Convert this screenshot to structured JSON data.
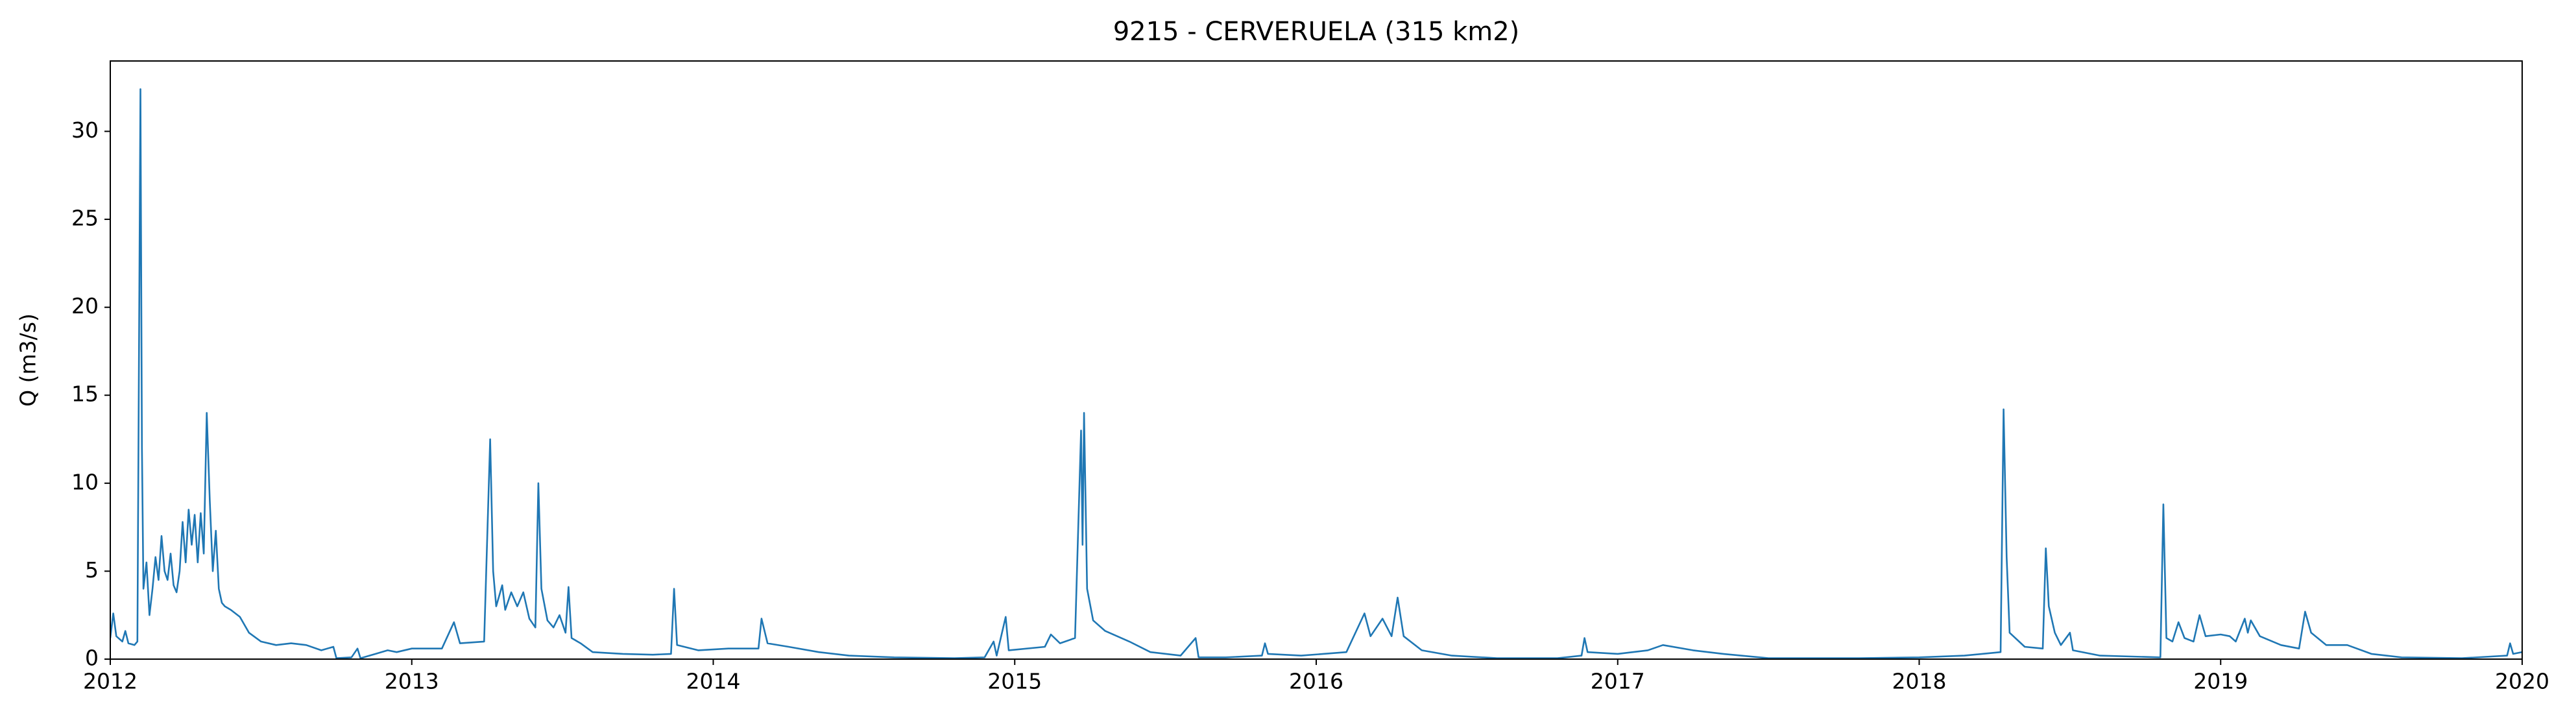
{
  "chart_data": {
    "type": "line",
    "title": "9215 - CERVERUELA (315 km2)",
    "y_label": "Q (m3/s)",
    "xlim": [
      2012,
      2020
    ],
    "xticks": [
      2012,
      2013,
      2014,
      2015,
      2016,
      2017,
      2018,
      2019,
      2020
    ],
    "ylim": [
      0,
      34
    ],
    "yticks": [
      0,
      5,
      10,
      15,
      20,
      25,
      30
    ],
    "grid": false,
    "series": [
      {
        "color": "#1f77b4",
        "x": [
          2012.0,
          2012.01,
          2012.02,
          2012.04,
          2012.05,
          2012.06,
          2012.08,
          2012.09,
          2012.1,
          2012.105,
          2012.11,
          2012.12,
          2012.13,
          2012.14,
          2012.15,
          2012.16,
          2012.17,
          2012.18,
          2012.19,
          2012.2,
          2012.21,
          2012.22,
          2012.23,
          2012.24,
          2012.25,
          2012.26,
          2012.27,
          2012.28,
          2012.29,
          2012.3,
          2012.31,
          2012.32,
          2012.33,
          2012.34,
          2012.35,
          2012.36,
          2012.37,
          2012.38,
          2012.4,
          2012.43,
          2012.46,
          2012.5,
          2012.55,
          2012.6,
          2012.65,
          2012.7,
          2012.74,
          2012.75,
          2012.8,
          2012.82,
          2012.83,
          2012.88,
          2012.92,
          2012.95,
          2013.0,
          2013.1,
          2013.14,
          2013.16,
          2013.24,
          2013.26,
          2013.27,
          2013.28,
          2013.3,
          2013.31,
          2013.33,
          2013.35,
          2013.37,
          2013.39,
          2013.41,
          2013.42,
          2013.43,
          2013.45,
          2013.47,
          2013.49,
          2013.51,
          2013.52,
          2013.53,
          2013.56,
          2013.6,
          2013.7,
          2013.8,
          2013.86,
          2013.87,
          2013.88,
          2013.95,
          2014.05,
          2014.15,
          2014.16,
          2014.18,
          2014.25,
          2014.35,
          2014.45,
          2014.6,
          2014.8,
          2014.9,
          2014.93,
          2014.94,
          2014.97,
          2014.98,
          2015.1,
          2015.12,
          2015.15,
          2015.2,
          2015.22,
          2015.225,
          2015.23,
          2015.24,
          2015.26,
          2015.3,
          2015.38,
          2015.45,
          2015.55,
          2015.6,
          2015.61,
          2015.7,
          2015.82,
          2015.83,
          2015.84,
          2015.95,
          2016.1,
          2016.16,
          2016.18,
          2016.22,
          2016.25,
          2016.27,
          2016.29,
          2016.35,
          2016.45,
          2016.6,
          2016.8,
          2016.88,
          2016.89,
          2016.9,
          2017.0,
          2017.1,
          2017.15,
          2017.25,
          2017.35,
          2017.5,
          2017.8,
          2018.0,
          2018.15,
          2018.27,
          2018.28,
          2018.29,
          2018.3,
          2018.35,
          2018.41,
          2018.42,
          2018.43,
          2018.45,
          2018.47,
          2018.5,
          2018.51,
          2018.6,
          2018.8,
          2018.81,
          2018.82,
          2018.84,
          2018.86,
          2018.88,
          2018.91,
          2018.93,
          2018.95,
          2019.0,
          2019.03,
          2019.05,
          2019.08,
          2019.09,
          2019.1,
          2019.13,
          2019.2,
          2019.26,
          2019.28,
          2019.3,
          2019.35,
          2019.42,
          2019.5,
          2019.6,
          2019.8,
          2019.95,
          2019.96,
          2019.97,
          2020.0
        ],
        "values": [
          1.2,
          2.6,
          1.3,
          1.0,
          1.6,
          0.9,
          0.8,
          1.0,
          32.4,
          12,
          4,
          5.5,
          2.5,
          4,
          5.8,
          4.5,
          7,
          5,
          4.5,
          6,
          4.2,
          3.8,
          5,
          7.8,
          5.5,
          8.5,
          6.5,
          8.2,
          5.5,
          8.3,
          6,
          14,
          9,
          5,
          7.3,
          4,
          3.2,
          3.0,
          2.8,
          2.4,
          1.5,
          1.0,
          0.8,
          0.9,
          0.8,
          0.5,
          0.7,
          0.05,
          0.1,
          0.6,
          0.05,
          0.3,
          0.5,
          0.4,
          0.6,
          0.6,
          2.1,
          0.9,
          1.0,
          12.5,
          5,
          3,
          4.2,
          2.8,
          3.8,
          3,
          3.8,
          2.3,
          1.8,
          10,
          4,
          2.2,
          1.8,
          2.5,
          1.5,
          4.1,
          1.2,
          0.9,
          0.4,
          0.3,
          0.25,
          0.3,
          4,
          0.8,
          0.5,
          0.6,
          0.6,
          2.3,
          0.9,
          0.7,
          0.4,
          0.2,
          0.1,
          0.05,
          0.1,
          1.0,
          0.2,
          2.4,
          0.5,
          0.7,
          1.4,
          0.9,
          1.2,
          13,
          6.5,
          14,
          4,
          2.2,
          1.6,
          1.0,
          0.4,
          0.2,
          1.2,
          0.1,
          0.1,
          0.2,
          0.9,
          0.3,
          0.2,
          0.4,
          2.6,
          1.3,
          2.3,
          1.3,
          3.5,
          1.3,
          0.5,
          0.2,
          0.05,
          0.05,
          0.2,
          1.2,
          0.4,
          0.3,
          0.5,
          0.8,
          0.5,
          0.3,
          0.05,
          0.05,
          0.1,
          0.2,
          0.4,
          14.2,
          5.8,
          1.5,
          0.7,
          0.6,
          6.3,
          3,
          1.5,
          0.8,
          1.5,
          0.5,
          0.2,
          0.1,
          8.8,
          1.2,
          1.0,
          2.1,
          1.2,
          1.0,
          2.5,
          1.3,
          1.4,
          1.3,
          1.0,
          2.3,
          1.5,
          2.2,
          1.3,
          0.8,
          0.6,
          2.7,
          1.5,
          0.8,
          0.8,
          0.3,
          0.1,
          0.05,
          0.2,
          0.9,
          0.3,
          0.4
        ]
      }
    ]
  }
}
